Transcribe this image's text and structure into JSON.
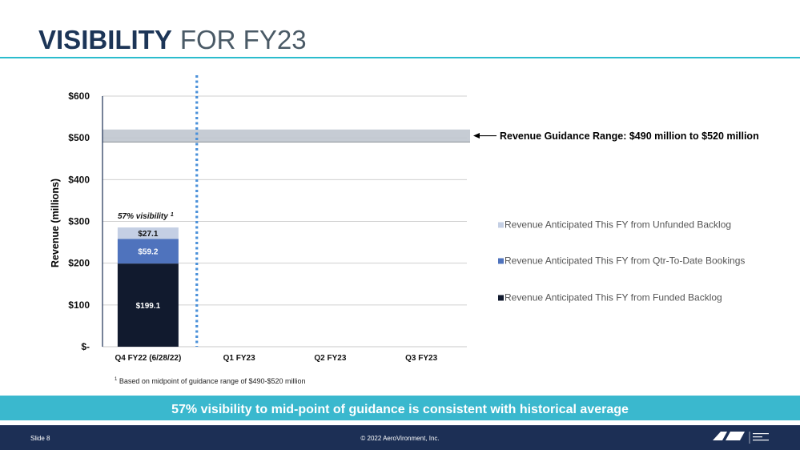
{
  "header": {
    "title_bold": "VISIBILITY",
    "title_light": "FOR FY23"
  },
  "chart_data": {
    "type": "bar",
    "stacked": true,
    "ylabel": "Revenue (millions)",
    "ylim": [
      0,
      600
    ],
    "y_ticks": [
      0,
      100,
      200,
      300,
      400,
      500,
      600
    ],
    "y_tick_labels": [
      "$-",
      "$100",
      "$200",
      "$300",
      "$400",
      "$500",
      "$600"
    ],
    "grid": true,
    "categories": [
      "Q4 FY22 (6/28/22)",
      "Q1 FY23",
      "Q2 FY23",
      "Q3 FY23"
    ],
    "series": [
      {
        "name": "Revenue Anticipated This FY from Funded Backlog",
        "values": [
          199.1,
          null,
          null,
          null
        ],
        "labels": [
          "$199.1",
          "",
          "",
          ""
        ],
        "color": "#111a2e"
      },
      {
        "name": "Revenue Anticipated This FY from Qtr-To-Date Bookings",
        "values": [
          59.2,
          null,
          null,
          null
        ],
        "labels": [
          "$59.2",
          "",
          "",
          ""
        ],
        "color": "#4f73bd"
      },
      {
        "name": "Revenue Anticipated This FY from Unfunded Backlog",
        "values": [
          27.1,
          null,
          null,
          null
        ],
        "labels": [
          "$27.1",
          "",
          "",
          ""
        ],
        "color": "#c4cfe4"
      }
    ],
    "legend_position": "right",
    "legend_order": [
      2,
      1,
      0
    ],
    "guidance_band": {
      "low": 490,
      "high": 520,
      "label": "Revenue Guidance Range: $490 million to $520 million"
    },
    "annotation": {
      "text": "57% visibility",
      "superscript": "1"
    },
    "colors": {
      "axis": "#1c2f55",
      "grid": "#d0d0d0",
      "band": "#bcc3cc",
      "divider": "#4a90d9"
    }
  },
  "footnote": {
    "marker": "1",
    "text": "Based on midpoint of guidance range of $490-$520 million"
  },
  "banner": {
    "text": "57% visibility to mid-point of guidance is consistent with historical average"
  },
  "footer": {
    "slide": "Slide 8",
    "copyright": "© 2022 AeroVironment, Inc.",
    "logo_text": "AeroVironment"
  }
}
